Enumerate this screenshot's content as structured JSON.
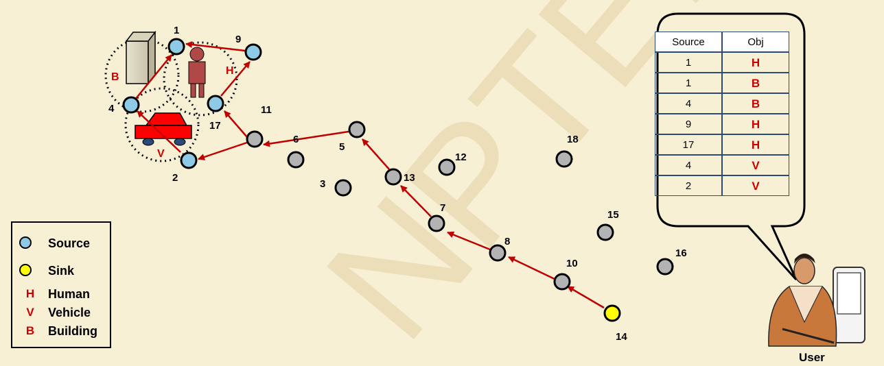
{
  "watermark": "NPTEL",
  "nodes": [
    {
      "id": "1",
      "type": "source",
      "label": "1"
    },
    {
      "id": "9",
      "type": "source",
      "label": "9"
    },
    {
      "id": "4",
      "type": "source",
      "label": "4"
    },
    {
      "id": "17",
      "type": "source",
      "label": "17"
    },
    {
      "id": "2",
      "type": "source",
      "label": "2"
    },
    {
      "id": "11",
      "type": "relay",
      "label": "11"
    },
    {
      "id": "6",
      "type": "relay",
      "label": "6"
    },
    {
      "id": "5",
      "type": "relay",
      "label": "5"
    },
    {
      "id": "3",
      "type": "relay",
      "label": "3"
    },
    {
      "id": "13",
      "type": "relay",
      "label": "13"
    },
    {
      "id": "12",
      "type": "relay",
      "label": "12"
    },
    {
      "id": "7",
      "type": "relay",
      "label": "7"
    },
    {
      "id": "8",
      "type": "relay",
      "label": "8"
    },
    {
      "id": "10",
      "type": "relay",
      "label": "10"
    },
    {
      "id": "18",
      "type": "relay",
      "label": "18"
    },
    {
      "id": "15",
      "type": "relay",
      "label": "15"
    },
    {
      "id": "16",
      "type": "relay",
      "label": "16"
    },
    {
      "id": "14",
      "type": "sink",
      "label": "14"
    }
  ],
  "object_labels": {
    "building": "B",
    "human": "H",
    "vehicle": "V"
  },
  "legend": [
    {
      "kind": "dot",
      "color": "#8ecae6",
      "text": "Source"
    },
    {
      "kind": "dot",
      "color": "#ffff00",
      "text": "Sink"
    },
    {
      "kind": "sym",
      "symbol": "H",
      "text": "Human"
    },
    {
      "kind": "sym",
      "symbol": "V",
      "text": "Vehicle"
    },
    {
      "kind": "sym",
      "symbol": "B",
      "text": "Building"
    }
  ],
  "table": {
    "headers": [
      "Source",
      "Obj"
    ],
    "rows": [
      [
        "1",
        "H"
      ],
      [
        "1",
        "B"
      ],
      [
        "4",
        "B"
      ],
      [
        "9",
        "H"
      ],
      [
        "17",
        "H"
      ],
      [
        "4",
        "V"
      ],
      [
        "2",
        "V"
      ]
    ]
  },
  "user_label": "User",
  "colors": {
    "background": "#f7f0d5",
    "source": "#8ecae6",
    "relay": "#b3b3b3",
    "sink": "#ffff00",
    "edge": "#c00000"
  }
}
